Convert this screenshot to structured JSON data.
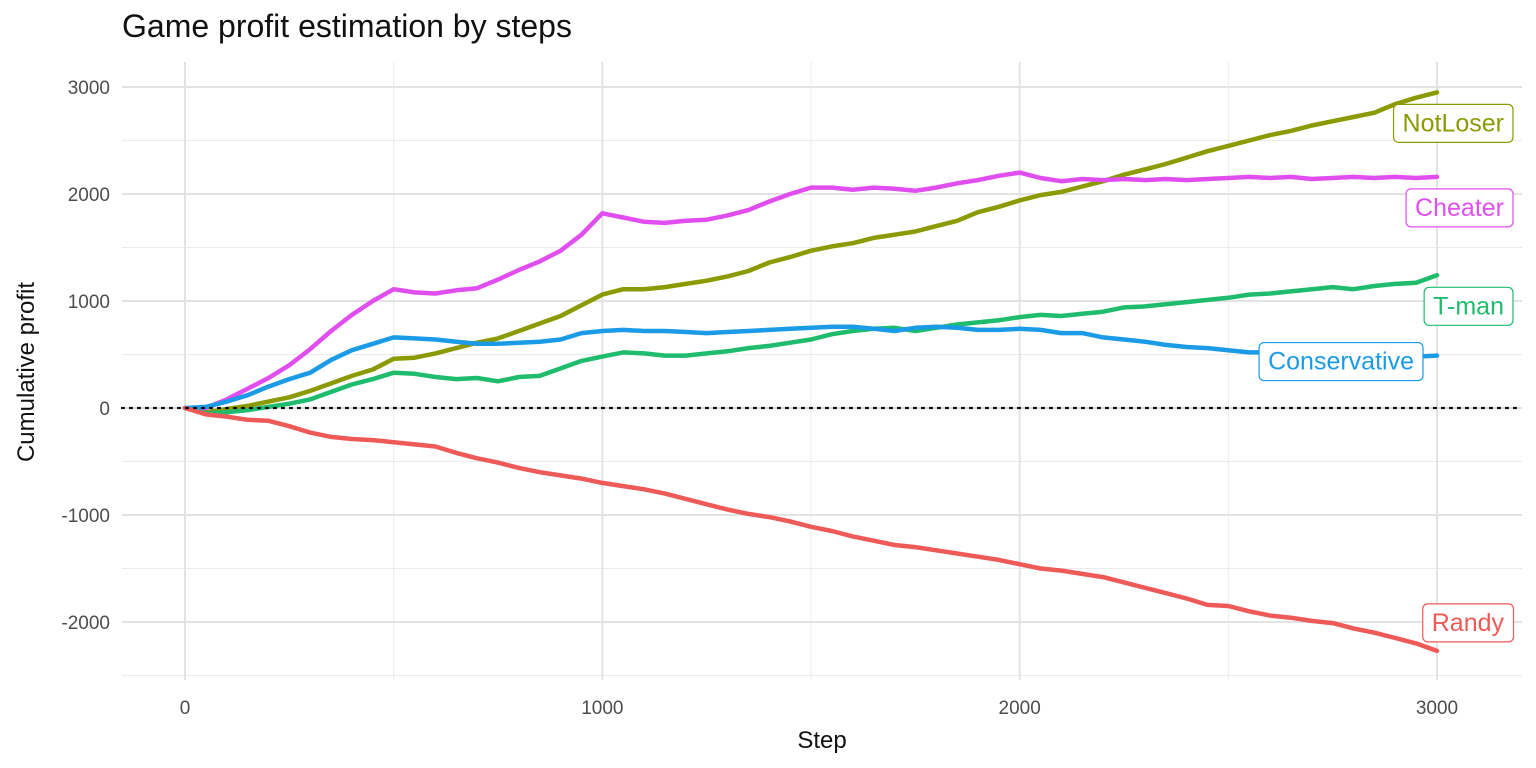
{
  "chart_data": {
    "type": "line",
    "title": "Game profit estimation by steps",
    "xlabel": "Step",
    "ylabel": "Cumulative profit",
    "xlim": [
      -150,
      3200
    ],
    "ylim": [
      -2500,
      3000
    ],
    "xticks": [
      0,
      1000,
      2000,
      3000
    ],
    "yticks": [
      3000,
      2000,
      1000,
      0,
      -1000,
      -2000
    ],
    "xtick_labels": [
      "0",
      "1000",
      "2000",
      "3000"
    ],
    "ytick_labels": [
      "3000",
      "2000",
      "1000",
      "0",
      "-1000",
      "-2000"
    ],
    "reference_line": {
      "y": 0,
      "style": "dotted"
    },
    "grid": true,
    "legend": "direct labels at line ends",
    "series": [
      {
        "name": "NotLoser",
        "color": "#8a9a00",
        "x": [
          0,
          50,
          100,
          150,
          200,
          250,
          300,
          350,
          400,
          450,
          500,
          550,
          600,
          650,
          700,
          750,
          800,
          850,
          900,
          950,
          1000,
          1050,
          1100,
          1150,
          1200,
          1250,
          1300,
          1350,
          1400,
          1450,
          1500,
          1550,
          1600,
          1650,
          1700,
          1750,
          1800,
          1850,
          1900,
          1950,
          2000,
          2050,
          2100,
          2150,
          2200,
          2250,
          2300,
          2350,
          2400,
          2450,
          2500,
          2550,
          2600,
          2650,
          2700,
          2750,
          2800,
          2850,
          2900,
          2950,
          3000
        ],
        "y": [
          0,
          -40,
          -10,
          20,
          60,
          100,
          160,
          230,
          300,
          360,
          460,
          470,
          510,
          560,
          610,
          650,
          720,
          790,
          860,
          960,
          1060,
          1110,
          1110,
          1130,
          1160,
          1190,
          1230,
          1280,
          1360,
          1410,
          1470,
          1510,
          1540,
          1590,
          1620,
          1650,
          1700,
          1750,
          1830,
          1880,
          1940,
          1990,
          2020,
          2070,
          2120,
          2180,
          2230,
          2280,
          2340,
          2400,
          2450,
          2500,
          2550,
          2590,
          2640,
          2680,
          2720,
          2760,
          2840,
          2900,
          2950
        ]
      },
      {
        "name": "Cheater",
        "color": "#e14ef0",
        "x": [
          0,
          50,
          100,
          150,
          200,
          250,
          300,
          350,
          400,
          450,
          500,
          550,
          600,
          650,
          700,
          750,
          800,
          850,
          900,
          950,
          1000,
          1050,
          1100,
          1150,
          1200,
          1250,
          1300,
          1350,
          1400,
          1450,
          1500,
          1550,
          1600,
          1650,
          1700,
          1750,
          1800,
          1850,
          1900,
          1950,
          2000,
          2050,
          2100,
          2150,
          2200,
          2250,
          2300,
          2350,
          2400,
          2450,
          2500,
          2550,
          2600,
          2650,
          2700,
          2750,
          2800,
          2850,
          2900,
          2950,
          3000
        ],
        "y": [
          0,
          0,
          80,
          180,
          280,
          400,
          550,
          720,
          870,
          1000,
          1110,
          1080,
          1070,
          1100,
          1120,
          1200,
          1290,
          1370,
          1470,
          1620,
          1820,
          1780,
          1740,
          1730,
          1750,
          1760,
          1800,
          1850,
          1930,
          2000,
          2060,
          2060,
          2040,
          2060,
          2050,
          2030,
          2060,
          2100,
          2130,
          2170,
          2200,
          2150,
          2120,
          2140,
          2130,
          2140,
          2130,
          2140,
          2130,
          2140,
          2150,
          2160,
          2150,
          2160,
          2140,
          2150,
          2160,
          2150,
          2160,
          2150,
          2160
        ]
      },
      {
        "name": "T-man",
        "color": "#1fbc6e",
        "x": [
          0,
          50,
          100,
          150,
          200,
          250,
          300,
          350,
          400,
          450,
          500,
          550,
          600,
          650,
          700,
          750,
          800,
          850,
          900,
          950,
          1000,
          1050,
          1100,
          1150,
          1200,
          1250,
          1300,
          1350,
          1400,
          1450,
          1500,
          1550,
          1600,
          1650,
          1700,
          1750,
          1800,
          1850,
          1900,
          1950,
          2000,
          2050,
          2100,
          2150,
          2200,
          2250,
          2300,
          2350,
          2400,
          2450,
          2500,
          2550,
          2600,
          2650,
          2700,
          2750,
          2800,
          2850,
          2900,
          2950,
          3000
        ],
        "y": [
          0,
          -50,
          -40,
          -20,
          10,
          40,
          80,
          150,
          220,
          270,
          330,
          320,
          290,
          270,
          280,
          250,
          290,
          300,
          370,
          440,
          480,
          520,
          510,
          490,
          490,
          510,
          530,
          560,
          580,
          610,
          640,
          690,
          720,
          740,
          750,
          720,
          750,
          780,
          800,
          820,
          850,
          870,
          860,
          880,
          900,
          940,
          950,
          970,
          990,
          1010,
          1030,
          1060,
          1070,
          1090,
          1110,
          1130,
          1110,
          1140,
          1160,
          1170,
          1240
        ]
      },
      {
        "name": "Conservative",
        "color": "#1b9be6",
        "x": [
          0,
          50,
          100,
          150,
          200,
          250,
          300,
          350,
          400,
          450,
          500,
          550,
          600,
          650,
          700,
          750,
          800,
          850,
          900,
          950,
          1000,
          1050,
          1100,
          1150,
          1200,
          1250,
          1300,
          1350,
          1400,
          1450,
          1500,
          1550,
          1600,
          1650,
          1700,
          1750,
          1800,
          1850,
          1900,
          1950,
          2000,
          2050,
          2100,
          2150,
          2200,
          2250,
          2300,
          2350,
          2400,
          2450,
          2500,
          2550,
          2600,
          2650,
          2700,
          2750,
          2800,
          2850,
          2900,
          2950,
          3000
        ],
        "y": [
          0,
          10,
          60,
          120,
          200,
          270,
          330,
          450,
          540,
          600,
          660,
          650,
          640,
          620,
          600,
          600,
          610,
          620,
          640,
          700,
          720,
          730,
          720,
          720,
          710,
          700,
          710,
          720,
          730,
          740,
          750,
          760,
          760,
          740,
          720,
          750,
          760,
          750,
          730,
          730,
          740,
          730,
          700,
          700,
          660,
          640,
          620,
          590,
          570,
          560,
          540,
          520,
          520,
          510,
          500,
          500,
          490,
          500,
          490,
          480,
          490
        ]
      },
      {
        "name": "Randy",
        "color": "#ee5a57",
        "x": [
          0,
          50,
          100,
          150,
          200,
          250,
          300,
          350,
          400,
          450,
          500,
          550,
          600,
          650,
          700,
          750,
          800,
          850,
          900,
          950,
          1000,
          1050,
          1100,
          1150,
          1200,
          1250,
          1300,
          1350,
          1400,
          1450,
          1500,
          1550,
          1600,
          1650,
          1700,
          1750,
          1800,
          1850,
          1900,
          1950,
          2000,
          2050,
          2100,
          2150,
          2200,
          2250,
          2300,
          2350,
          2400,
          2450,
          2500,
          2550,
          2600,
          2650,
          2700,
          2750,
          2800,
          2850,
          2900,
          2950,
          3000
        ],
        "y": [
          0,
          -60,
          -80,
          -110,
          -120,
          -170,
          -230,
          -270,
          -290,
          -300,
          -320,
          -340,
          -360,
          -420,
          -470,
          -510,
          -560,
          -600,
          -630,
          -660,
          -700,
          -730,
          -760,
          -800,
          -850,
          -900,
          -950,
          -990,
          -1020,
          -1060,
          -1110,
          -1150,
          -1200,
          -1240,
          -1280,
          -1300,
          -1330,
          -1360,
          -1390,
          -1420,
          -1460,
          -1500,
          -1520,
          -1550,
          -1580,
          -1630,
          -1680,
          -1730,
          -1780,
          -1840,
          -1850,
          -1900,
          -1940,
          -1960,
          -1990,
          -2010,
          -2060,
          -2100,
          -2150,
          -2200,
          -2270
        ]
      }
    ]
  }
}
